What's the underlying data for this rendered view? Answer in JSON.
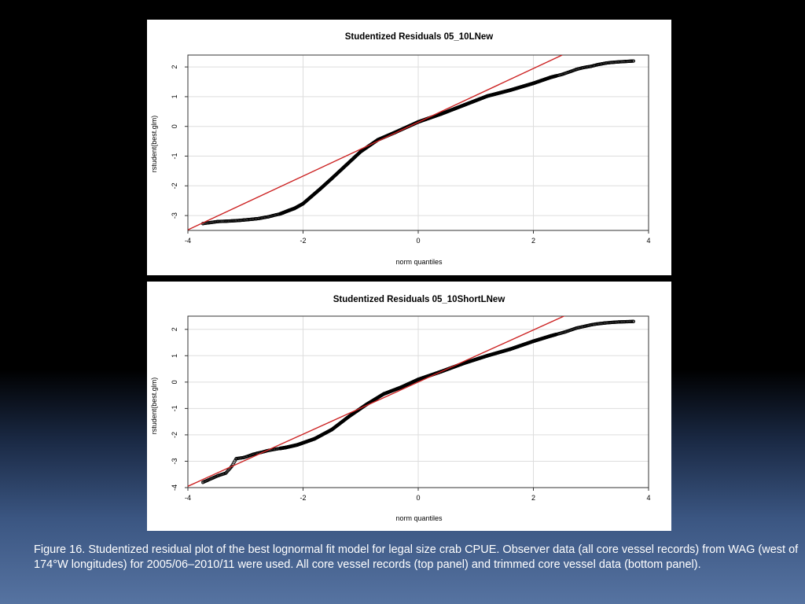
{
  "chart_data": [
    {
      "type": "scatter",
      "title": "Studentized Residuals 05_10LNew",
      "xlabel": "norm quantiles",
      "ylabel": "rstudent(best.glm)",
      "xlim": [
        -4,
        4
      ],
      "ylim": [
        -3.5,
        2.4
      ],
      "xticks": [
        -4,
        -2,
        0,
        2,
        4
      ],
      "yticks": [
        -3,
        -2,
        -1,
        0,
        1,
        2
      ],
      "grid": true,
      "points": [
        [
          -3.74,
          -3.27
        ],
        [
          -3.48,
          -3.2
        ],
        [
          -3.34,
          -3.19
        ],
        [
          -3.24,
          -3.18
        ],
        [
          -3.16,
          -3.17
        ],
        [
          -3.09,
          -3.16
        ],
        [
          -3.03,
          -3.15
        ],
        [
          -2.97,
          -3.14
        ],
        [
          -2.92,
          -3.13
        ],
        [
          -2.87,
          -3.12
        ],
        [
          -2.82,
          -3.11
        ],
        [
          -2.77,
          -3.1
        ],
        [
          -2.72,
          -3.08
        ],
        [
          -2.66,
          -3.06
        ],
        [
          -2.6,
          -3.04
        ],
        [
          -2.54,
          -3.01
        ],
        [
          -2.48,
          -2.98
        ],
        [
          -2.41,
          -2.95
        ],
        [
          -2.34,
          -2.9
        ],
        [
          -2.25,
          -2.83
        ],
        [
          -2.15,
          -2.76
        ],
        [
          -2.0,
          -2.6
        ],
        [
          -1.85,
          -2.35
        ],
        [
          -1.7,
          -2.1
        ],
        [
          -1.5,
          -1.75
        ],
        [
          -1.25,
          -1.3
        ],
        [
          -1.0,
          -0.85
        ],
        [
          -0.7,
          -0.45
        ],
        [
          -0.4,
          -0.2
        ],
        [
          0.0,
          0.15
        ],
        [
          0.4,
          0.42
        ],
        [
          0.8,
          0.72
        ],
        [
          1.2,
          1.02
        ],
        [
          1.6,
          1.22
        ],
        [
          2.0,
          1.45
        ],
        [
          2.3,
          1.65
        ],
        [
          2.5,
          1.75
        ],
        [
          2.65,
          1.85
        ],
        [
          2.75,
          1.92
        ],
        [
          2.85,
          1.97
        ],
        [
          2.93,
          2.0
        ],
        [
          3.0,
          2.02
        ],
        [
          3.06,
          2.05
        ],
        [
          3.12,
          2.08
        ],
        [
          3.18,
          2.1
        ],
        [
          3.26,
          2.13
        ],
        [
          3.35,
          2.15
        ],
        [
          3.48,
          2.17
        ],
        [
          3.74,
          2.2
        ]
      ],
      "reference_line": [
        [
          -4,
          -3.48
        ],
        [
          2.5,
          2.4
        ]
      ],
      "colors": {
        "points": "#000000",
        "line": "#cc2222"
      }
    },
    {
      "type": "scatter",
      "title": "Studentized Residuals 05_10ShortLNew",
      "xlabel": "norm quantiles",
      "ylabel": "rstudent(best.glm)",
      "xlim": [
        -4,
        4
      ],
      "ylim": [
        -4,
        2.5
      ],
      "xticks": [
        -4,
        -2,
        0,
        2,
        4
      ],
      "yticks": [
        -4,
        -3,
        -2,
        -1,
        0,
        1,
        2
      ],
      "grid": true,
      "points": [
        [
          -3.74,
          -3.8
        ],
        [
          -3.48,
          -3.55
        ],
        [
          -3.34,
          -3.45
        ],
        [
          -3.24,
          -3.2
        ],
        [
          -3.16,
          -2.9
        ],
        [
          -3.09,
          -2.88
        ],
        [
          -3.03,
          -2.86
        ],
        [
          -2.97,
          -2.82
        ],
        [
          -2.92,
          -2.78
        ],
        [
          -2.87,
          -2.74
        ],
        [
          -2.8,
          -2.7
        ],
        [
          -2.72,
          -2.66
        ],
        [
          -2.62,
          -2.6
        ],
        [
          -2.5,
          -2.55
        ],
        [
          -2.3,
          -2.48
        ],
        [
          -2.1,
          -2.38
        ],
        [
          -1.8,
          -2.15
        ],
        [
          -1.5,
          -1.8
        ],
        [
          -1.2,
          -1.3
        ],
        [
          -0.9,
          -0.85
        ],
        [
          -0.6,
          -0.45
        ],
        [
          -0.3,
          -0.2
        ],
        [
          0.0,
          0.1
        ],
        [
          0.4,
          0.4
        ],
        [
          0.8,
          0.72
        ],
        [
          1.2,
          1.0
        ],
        [
          1.6,
          1.25
        ],
        [
          2.0,
          1.55
        ],
        [
          2.3,
          1.75
        ],
        [
          2.55,
          1.9
        ],
        [
          2.75,
          2.05
        ],
        [
          2.9,
          2.12
        ],
        [
          3.0,
          2.17
        ],
        [
          3.08,
          2.2
        ],
        [
          3.16,
          2.22
        ],
        [
          3.24,
          2.24
        ],
        [
          3.34,
          2.26
        ],
        [
          3.48,
          2.28
        ],
        [
          3.74,
          2.3
        ]
      ],
      "reference_line": [
        [
          -4,
          -3.95
        ],
        [
          2.55,
          2.52
        ]
      ],
      "colors": {
        "points": "#000000",
        "line": "#cc2222"
      }
    }
  ],
  "caption": "Figure 16. Studentized residual plot of the best lognormal fit model for legal size crab CPUE.  Observer data (all core vessel records) from WAG (west of 174°W longitudes) for 2005/06–2010/11 were used. All core vessel records (top panel) and trimmed core vessel data (bottom panel)."
}
